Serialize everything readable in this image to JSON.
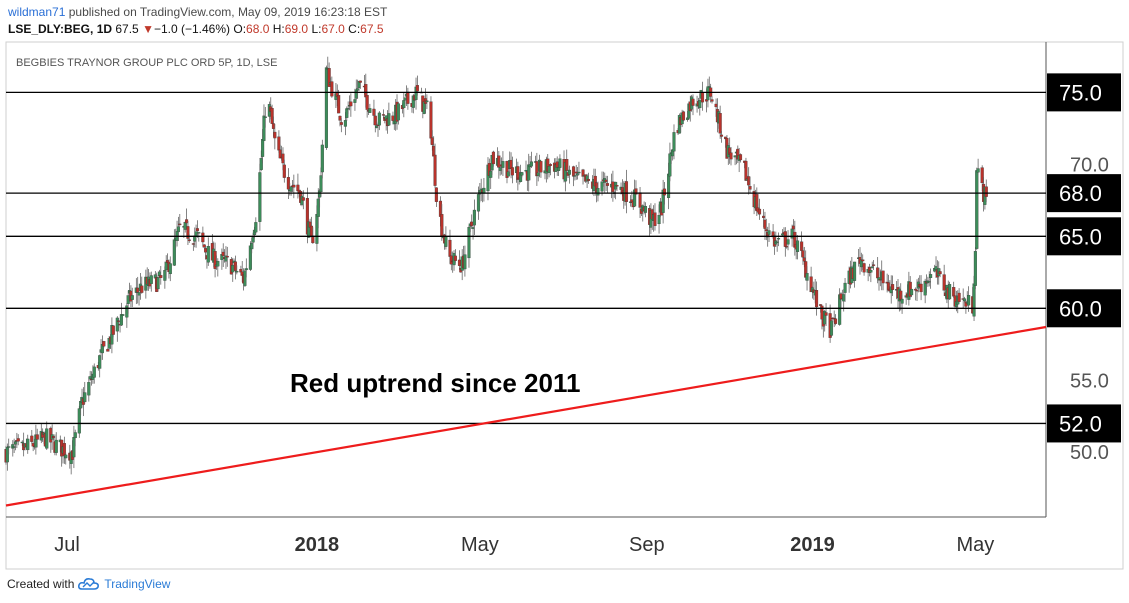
{
  "header": {
    "author": "wildman71",
    "published_text": "published on TradingView.com, May 09, 2019 16:23:18 EST",
    "symbol": "LSE_DLY:BEG, 1D",
    "last": "67.5",
    "change_arrow": "▼",
    "change": "−1.0 (−1.46%)",
    "o_label": "O:",
    "o_value": "68.0",
    "h_label": "H:",
    "h_value": "69.0",
    "l_label": "L:",
    "l_value": "67.0",
    "c_label": "C:",
    "c_value": "67.5"
  },
  "footer": {
    "created_with": "Created with",
    "brand": "TradingView",
    "logo_icon": "tradingview-cloud-icon"
  },
  "colors": {
    "up": "#3d8c5a",
    "down": "#b8332c",
    "trendline": "#ee1c1c",
    "level_lines": "#000000",
    "axis_text": "#555555"
  },
  "chart_data": {
    "type": "candlestick",
    "title": "BEGBIES TRAYNOR GROUP PLC ORD 5P, 1D, LSE",
    "ylim": [
      45.5,
      78.5
    ],
    "x_range": [
      "2017-05-17",
      "2019-06-22"
    ],
    "x_ticks": [
      {
        "label": "Jul",
        "date": "2017-07-01",
        "bold": false
      },
      {
        "label": "2018",
        "date": "2018-01-01",
        "bold": true
      },
      {
        "label": "May",
        "date": "2018-05-01",
        "bold": false
      },
      {
        "label": "Sep",
        "date": "2018-09-01",
        "bold": false
      },
      {
        "label": "2019",
        "date": "2019-01-01",
        "bold": true
      },
      {
        "label": "May",
        "date": "2019-05-01",
        "bold": false
      }
    ],
    "y_ticks": [
      "50.0",
      "55.0",
      "70.0"
    ],
    "horizontal_levels": [
      {
        "value": 75.0,
        "label": "75.0"
      },
      {
        "value": 68.0,
        "label": "68.0"
      },
      {
        "value": 65.0,
        "label": "65.0"
      },
      {
        "value": 60.0,
        "label": "60.0"
      },
      {
        "value": 52.0,
        "label": "52.0"
      }
    ],
    "trendline": {
      "start": {
        "date": "2017-05-17",
        "value": 46.3
      },
      "end": {
        "date": "2019-06-22",
        "value": 58.7
      },
      "label": "Red uptrend since 2011"
    },
    "price_path": [
      [
        "2017-05-17",
        50.0
      ],
      [
        "2017-06-01",
        50.3
      ],
      [
        "2017-06-15",
        51.0
      ],
      [
        "2017-06-28",
        50.2
      ],
      [
        "2017-07-05",
        50.0
      ],
      [
        "2017-07-12",
        53.5
      ],
      [
        "2017-07-25",
        56.5
      ],
      [
        "2017-08-05",
        58.5
      ],
      [
        "2017-08-15",
        60.5
      ],
      [
        "2017-08-25",
        61.5
      ],
      [
        "2017-09-10",
        62.0
      ],
      [
        "2017-09-22",
        65.5
      ],
      [
        "2017-10-05",
        65.0
      ],
      [
        "2017-10-15",
        63.5
      ],
      [
        "2017-10-30",
        63.0
      ],
      [
        "2017-11-08",
        62.0
      ],
      [
        "2017-11-18",
        67.0
      ],
      [
        "2017-11-25",
        75.0
      ],
      [
        "2017-12-02",
        71.0
      ],
      [
        "2017-12-10",
        69.0
      ],
      [
        "2017-12-20",
        68.0
      ],
      [
        "2017-12-28",
        64.5
      ],
      [
        "2018-01-03",
        68.0
      ],
      [
        "2018-01-08",
        76.5
      ],
      [
        "2018-01-20",
        73.0
      ],
      [
        "2018-02-01",
        75.5
      ],
      [
        "2018-02-15",
        73.0
      ],
      [
        "2018-03-01",
        73.5
      ],
      [
        "2018-03-15",
        75.0
      ],
      [
        "2018-03-25",
        73.5
      ],
      [
        "2018-03-31",
        67.0
      ],
      [
        "2018-04-08",
        63.5
      ],
      [
        "2018-04-18",
        63.0
      ],
      [
        "2018-04-28",
        67.0
      ],
      [
        "2018-05-10",
        70.5
      ],
      [
        "2018-05-25",
        69.5
      ],
      [
        "2018-06-10",
        69.5
      ],
      [
        "2018-06-25",
        70.0
      ],
      [
        "2018-07-10",
        69.0
      ],
      [
        "2018-07-25",
        68.5
      ],
      [
        "2018-08-10",
        68.5
      ],
      [
        "2018-08-25",
        67.5
      ],
      [
        "2018-09-05",
        66.0
      ],
      [
        "2018-09-12",
        67.0
      ],
      [
        "2018-09-22",
        72.5
      ],
      [
        "2018-10-05",
        74.5
      ],
      [
        "2018-10-18",
        75.0
      ],
      [
        "2018-10-30",
        71.0
      ],
      [
        "2018-11-12",
        69.5
      ],
      [
        "2018-11-25",
        66.0
      ],
      [
        "2018-12-05",
        64.5
      ],
      [
        "2018-12-18",
        65.0
      ],
      [
        "2018-12-30",
        62.0
      ],
      [
        "2019-01-07",
        59.5
      ],
      [
        "2019-01-15",
        58.5
      ],
      [
        "2019-01-25",
        61.5
      ],
      [
        "2019-02-05",
        63.5
      ],
      [
        "2019-02-20",
        62.0
      ],
      [
        "2019-03-05",
        61.0
      ],
      [
        "2019-03-20",
        61.5
      ],
      [
        "2019-04-01",
        62.5
      ],
      [
        "2019-04-12",
        61.0
      ],
      [
        "2019-04-22",
        60.5
      ],
      [
        "2019-04-29",
        60.2
      ],
      [
        "2019-05-01",
        64.5
      ],
      [
        "2019-05-02",
        69.5
      ],
      [
        "2019-05-09",
        67.5
      ]
    ]
  }
}
